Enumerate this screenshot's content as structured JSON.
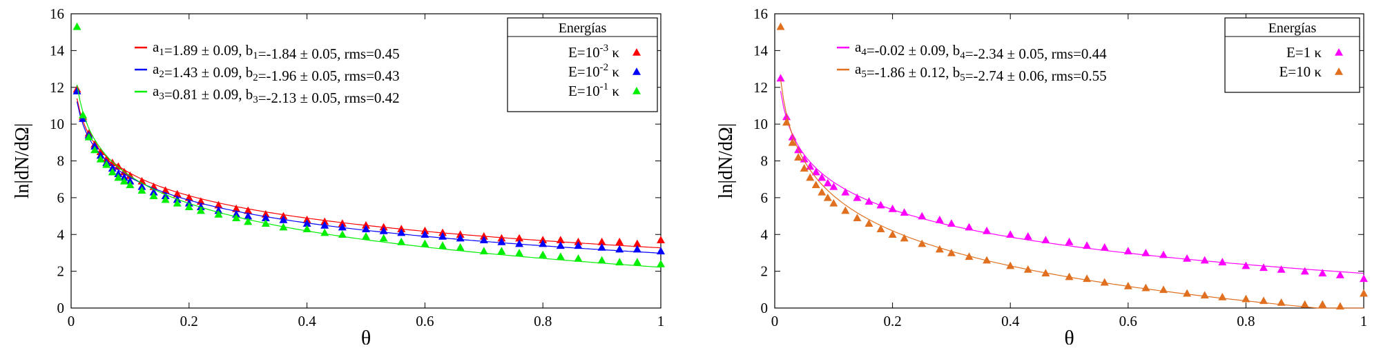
{
  "chart_data": [
    {
      "type": "scatter",
      "title": "",
      "xlabel": "θ",
      "ylabel": "ln|dN/dΩ|",
      "xlim": [
        0,
        1
      ],
      "ylim": [
        0,
        16
      ],
      "xticks": [
        "0",
        "0.2",
        "0.4",
        "0.6",
        "0.8",
        "1"
      ],
      "yticks": [
        "0",
        "2",
        "4",
        "6",
        "8",
        "10",
        "12",
        "14",
        "16"
      ],
      "grid": false,
      "legend_title": "Energías",
      "legend_position": "top-right",
      "fit_form": "y = a·ln(θ) + b·... (fitted curves)",
      "series": [
        {
          "name": "E=10⁻³ κ",
          "label_base": "E=10",
          "label_exp": "-3",
          "label_unit": "κ",
          "color": "#ff0000",
          "marker": "triangle",
          "fit": {
            "a_sub": "1",
            "a": "1.89 ± 0.09",
            "b_sub": "1",
            "b": "-1.84 ± 0.05",
            "rms": "0.45"
          },
          "points": [
            [
              0.01,
              11.9
            ],
            [
              0.02,
              10.4
            ],
            [
              0.03,
              9.5
            ],
            [
              0.04,
              8.9
            ],
            [
              0.05,
              8.5
            ],
            [
              0.06,
              8.1
            ],
            [
              0.07,
              7.9
            ],
            [
              0.08,
              7.7
            ],
            [
              0.09,
              7.4
            ],
            [
              0.1,
              7.2
            ],
            [
              0.12,
              6.9
            ],
            [
              0.14,
              6.6
            ],
            [
              0.16,
              6.4
            ],
            [
              0.18,
              6.2
            ],
            [
              0.2,
              6.0
            ],
            [
              0.22,
              5.8
            ],
            [
              0.25,
              5.6
            ],
            [
              0.28,
              5.4
            ],
            [
              0.3,
              5.3
            ],
            [
              0.33,
              5.1
            ],
            [
              0.36,
              5.0
            ],
            [
              0.4,
              4.8
            ],
            [
              0.43,
              4.7
            ],
            [
              0.46,
              4.6
            ],
            [
              0.5,
              4.5
            ],
            [
              0.53,
              4.4
            ],
            [
              0.56,
              4.3
            ],
            [
              0.6,
              4.2
            ],
            [
              0.63,
              4.1
            ],
            [
              0.66,
              4.0
            ],
            [
              0.7,
              3.9
            ],
            [
              0.73,
              3.8
            ],
            [
              0.76,
              3.8
            ],
            [
              0.8,
              3.7
            ],
            [
              0.83,
              3.7
            ],
            [
              0.86,
              3.6
            ],
            [
              0.9,
              3.6
            ],
            [
              0.93,
              3.6
            ],
            [
              0.96,
              3.5
            ],
            [
              1.0,
              3.7
            ]
          ]
        },
        {
          "name": "E=10⁻² κ",
          "label_base": "E=10",
          "label_exp": "-2",
          "label_unit": "κ",
          "color": "#0000ff",
          "marker": "triangle",
          "fit": {
            "a_sub": "2",
            "a": "1.43 ± 0.09",
            "b_sub": "2",
            "b": "-1.96 ± 0.05",
            "rms": "0.43"
          },
          "points": [
            [
              0.01,
              11.8
            ],
            [
              0.02,
              10.3
            ],
            [
              0.03,
              9.4
            ],
            [
              0.04,
              8.8
            ],
            [
              0.05,
              8.3
            ],
            [
              0.06,
              7.9
            ],
            [
              0.07,
              7.6
            ],
            [
              0.08,
              7.3
            ],
            [
              0.09,
              7.1
            ],
            [
              0.1,
              6.9
            ],
            [
              0.12,
              6.6
            ],
            [
              0.14,
              6.3
            ],
            [
              0.16,
              6.1
            ],
            [
              0.18,
              5.9
            ],
            [
              0.2,
              5.7
            ],
            [
              0.22,
              5.5
            ],
            [
              0.25,
              5.3
            ],
            [
              0.28,
              5.1
            ],
            [
              0.3,
              5.0
            ],
            [
              0.33,
              4.9
            ],
            [
              0.36,
              4.8
            ],
            [
              0.4,
              4.6
            ],
            [
              0.43,
              4.5
            ],
            [
              0.46,
              4.4
            ],
            [
              0.5,
              4.3
            ],
            [
              0.53,
              4.2
            ],
            [
              0.56,
              4.1
            ],
            [
              0.6,
              4.0
            ],
            [
              0.63,
              3.9
            ],
            [
              0.66,
              3.8
            ],
            [
              0.7,
              3.7
            ],
            [
              0.73,
              3.6
            ],
            [
              0.76,
              3.5
            ],
            [
              0.8,
              3.5
            ],
            [
              0.83,
              3.4
            ],
            [
              0.86,
              3.4
            ],
            [
              0.9,
              3.3
            ],
            [
              0.93,
              3.2
            ],
            [
              0.96,
              3.2
            ],
            [
              1.0,
              3.1
            ]
          ]
        },
        {
          "name": "E=10⁻¹ κ",
          "label_base": "E=10",
          "label_exp": "-1",
          "label_unit": "κ",
          "color": "#00ee00",
          "marker": "triangle",
          "fit": {
            "a_sub": "3",
            "a": "0.81 ± 0.09",
            "b_sub": "3",
            "b": "-2.13 ± 0.05",
            "rms": "0.42"
          },
          "points": [
            [
              0.01,
              15.3
            ],
            [
              0.02,
              10.5
            ],
            [
              0.03,
              9.3
            ],
            [
              0.04,
              8.6
            ],
            [
              0.05,
              8.1
            ],
            [
              0.06,
              7.8
            ],
            [
              0.07,
              7.4
            ],
            [
              0.08,
              7.1
            ],
            [
              0.09,
              6.9
            ],
            [
              0.1,
              6.7
            ],
            [
              0.12,
              6.4
            ],
            [
              0.14,
              6.1
            ],
            [
              0.16,
              5.9
            ],
            [
              0.18,
              5.7
            ],
            [
              0.2,
              5.5
            ],
            [
              0.22,
              5.3
            ],
            [
              0.25,
              5.1
            ],
            [
              0.28,
              4.9
            ],
            [
              0.3,
              4.7
            ],
            [
              0.33,
              4.6
            ],
            [
              0.36,
              4.4
            ],
            [
              0.4,
              4.3
            ],
            [
              0.43,
              4.1
            ],
            [
              0.46,
              4.0
            ],
            [
              0.5,
              3.9
            ],
            [
              0.53,
              3.8
            ],
            [
              0.56,
              3.6
            ],
            [
              0.6,
              3.5
            ],
            [
              0.63,
              3.4
            ],
            [
              0.66,
              3.3
            ],
            [
              0.7,
              3.1
            ],
            [
              0.73,
              3.1
            ],
            [
              0.76,
              3.0
            ],
            [
              0.8,
              2.9
            ],
            [
              0.83,
              2.8
            ],
            [
              0.86,
              2.7
            ],
            [
              0.9,
              2.6
            ],
            [
              0.93,
              2.5
            ],
            [
              0.96,
              2.5
            ],
            [
              1.0,
              2.4
            ]
          ]
        }
      ]
    },
    {
      "type": "scatter",
      "title": "",
      "xlabel": "θ",
      "ylabel": "ln|dN/dΩ|",
      "xlim": [
        0,
        1
      ],
      "ylim": [
        0,
        16
      ],
      "xticks": [
        "0",
        "0.2",
        "0.4",
        "0.6",
        "0.8",
        "1"
      ],
      "yticks": [
        "0",
        "2",
        "4",
        "6",
        "8",
        "10",
        "12",
        "14",
        "16"
      ],
      "grid": false,
      "legend_title": "Energías",
      "legend_position": "top-right",
      "series": [
        {
          "name": "E=1 κ",
          "label_base": "E=1",
          "label_exp": "",
          "label_unit": "κ",
          "color": "#ff00ff",
          "marker": "triangle",
          "fit": {
            "a_sub": "4",
            "a": "-0.02 ± 0.09",
            "b_sub": "4",
            "b": "-2.34 ± 0.05",
            "rms": "0.44"
          },
          "points": [
            [
              0.01,
              12.5
            ],
            [
              0.02,
              10.4
            ],
            [
              0.03,
              9.3
            ],
            [
              0.04,
              8.6
            ],
            [
              0.05,
              8.1
            ],
            [
              0.06,
              7.7
            ],
            [
              0.07,
              7.4
            ],
            [
              0.08,
              7.1
            ],
            [
              0.09,
              6.8
            ],
            [
              0.1,
              6.6
            ],
            [
              0.12,
              6.3
            ],
            [
              0.14,
              6.0
            ],
            [
              0.16,
              5.8
            ],
            [
              0.18,
              5.6
            ],
            [
              0.2,
              5.4
            ],
            [
              0.22,
              5.2
            ],
            [
              0.25,
              5.0
            ],
            [
              0.28,
              4.8
            ],
            [
              0.3,
              4.6
            ],
            [
              0.33,
              4.4
            ],
            [
              0.36,
              4.2
            ],
            [
              0.4,
              4.0
            ],
            [
              0.43,
              3.9
            ],
            [
              0.46,
              3.7
            ],
            [
              0.5,
              3.6
            ],
            [
              0.53,
              3.4
            ],
            [
              0.56,
              3.3
            ],
            [
              0.6,
              3.1
            ],
            [
              0.63,
              3.0
            ],
            [
              0.66,
              2.9
            ],
            [
              0.7,
              2.7
            ],
            [
              0.73,
              2.6
            ],
            [
              0.76,
              2.5
            ],
            [
              0.8,
              2.3
            ],
            [
              0.83,
              2.2
            ],
            [
              0.86,
              2.1
            ],
            [
              0.9,
              2.0
            ],
            [
              0.93,
              1.9
            ],
            [
              0.96,
              1.8
            ],
            [
              1.0,
              1.6
            ]
          ]
        },
        {
          "name": "E=10 κ",
          "label_base": "E=10",
          "label_exp": "",
          "label_unit": "κ",
          "color": "#e07020",
          "marker": "triangle",
          "fit": {
            "a_sub": "5",
            "a": "-1.86 ± 0.12",
            "b_sub": "5",
            "b": "-2.74 ± 0.06",
            "rms": "0.55"
          },
          "points": [
            [
              0.01,
              15.3
            ],
            [
              0.02,
              10.1
            ],
            [
              0.03,
              9.0
            ],
            [
              0.04,
              8.2
            ],
            [
              0.05,
              7.6
            ],
            [
              0.06,
              7.1
            ],
            [
              0.07,
              6.7
            ],
            [
              0.08,
              6.3
            ],
            [
              0.09,
              6.0
            ],
            [
              0.1,
              5.7
            ],
            [
              0.12,
              5.3
            ],
            [
              0.14,
              4.9
            ],
            [
              0.16,
              4.6
            ],
            [
              0.18,
              4.3
            ],
            [
              0.2,
              4.0
            ],
            [
              0.22,
              3.8
            ],
            [
              0.25,
              3.5
            ],
            [
              0.28,
              3.2
            ],
            [
              0.3,
              3.0
            ],
            [
              0.33,
              2.8
            ],
            [
              0.36,
              2.6
            ],
            [
              0.4,
              2.3
            ],
            [
              0.43,
              2.1
            ],
            [
              0.46,
              1.9
            ],
            [
              0.5,
              1.7
            ],
            [
              0.53,
              1.6
            ],
            [
              0.56,
              1.4
            ],
            [
              0.6,
              1.2
            ],
            [
              0.63,
              1.1
            ],
            [
              0.66,
              1.0
            ],
            [
              0.7,
              0.8
            ],
            [
              0.73,
              0.7
            ],
            [
              0.76,
              0.6
            ],
            [
              0.8,
              0.5
            ],
            [
              0.83,
              0.4
            ],
            [
              0.86,
              0.3
            ],
            [
              0.9,
              0.2
            ],
            [
              0.93,
              0.2
            ],
            [
              0.96,
              0.1
            ],
            [
              1.0,
              0.8
            ]
          ]
        }
      ]
    }
  ]
}
